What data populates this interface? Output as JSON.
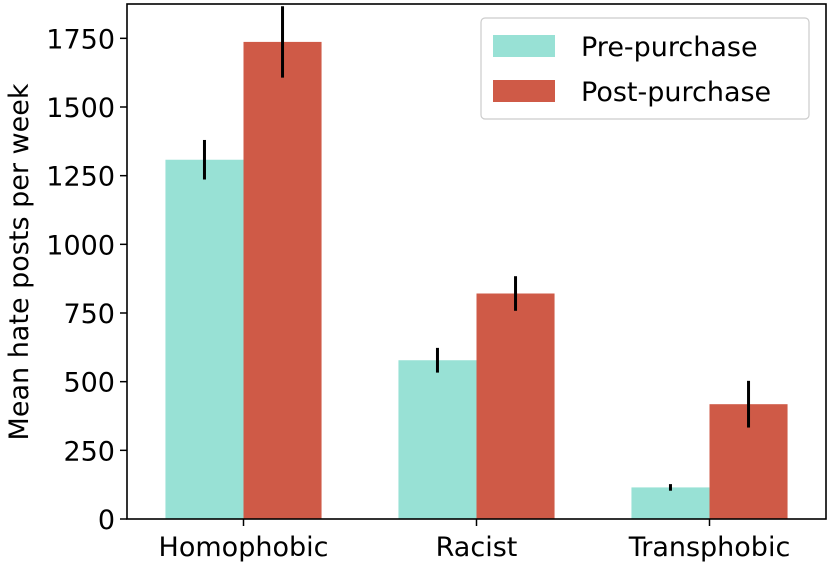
{
  "chart_data": {
    "type": "bar",
    "title": "",
    "xlabel": "",
    "ylabel": "Mean hate posts per week",
    "categories": [
      "Homophobic",
      "Racist",
      "Transphobic"
    ],
    "series": [
      {
        "name": "Pre-purchase",
        "color": "#98e1d5",
        "values": [
          1308,
          578,
          115
        ],
        "error": [
          72,
          45,
          12
        ]
      },
      {
        "name": "Post-purchase",
        "color": "#cf5a47",
        "values": [
          1737,
          821,
          418
        ],
        "error": [
          130,
          63,
          85
        ]
      }
    ],
    "ylim": [
      0,
      1875
    ],
    "yticks": [
      0,
      250,
      500,
      750,
      1000,
      1250,
      1500,
      1750
    ],
    "legend_position": "top-right",
    "grid": false
  }
}
